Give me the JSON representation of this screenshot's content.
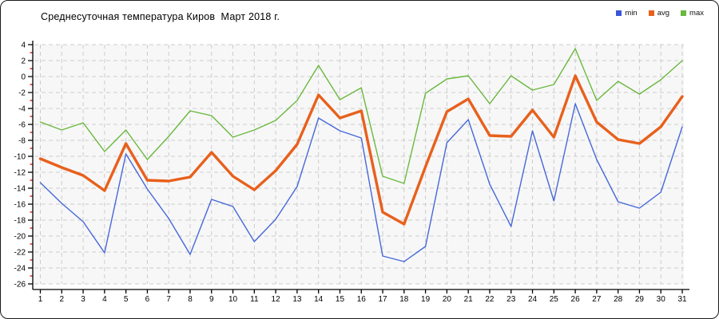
{
  "title": "Среднесуточная температура Киров  Март 2018 г.",
  "legend": [
    {
      "label": "min",
      "color": "#3a55d9"
    },
    {
      "label": "avg",
      "color": "#e8601c"
    },
    {
      "label": "max",
      "color": "#6ab83e"
    }
  ],
  "colors": {
    "plot_background": "#f7f7f7",
    "grid": "#cccccc",
    "axis": "#000000",
    "minor_tick": "#cc0000",
    "min_line": "#4668d9",
    "avg_line": "#e8601c",
    "max_line": "#6ab83e"
  },
  "chart_data": {
    "type": "line",
    "x_label_unit": "day of month",
    "x": [
      1,
      2,
      3,
      4,
      5,
      6,
      7,
      8,
      9,
      10,
      11,
      12,
      13,
      14,
      15,
      16,
      17,
      18,
      19,
      20,
      21,
      22,
      23,
      24,
      25,
      26,
      27,
      28,
      29,
      30,
      31
    ],
    "series": [
      {
        "name": "min",
        "color": "#4668d9",
        "width": 1.4,
        "values": [
          -13.3,
          -15.9,
          -18.2,
          -22.1,
          -9.7,
          -14.1,
          -17.8,
          -22.3,
          -15.4,
          -16.3,
          -20.7,
          -17.9,
          -13.8,
          -5.2,
          -6.8,
          -7.7,
          -22.5,
          -23.2,
          -21.3,
          -8.3,
          -5.4,
          -13.5,
          -18.8,
          -6.8,
          -15.6,
          -3.4,
          -10.4,
          -15.7,
          -16.5,
          -14.5,
          -6.3
        ]
      },
      {
        "name": "avg",
        "color": "#e8601c",
        "width": 3.4,
        "values": [
          -10.3,
          -11.4,
          -12.4,
          -14.3,
          -8.4,
          -13.0,
          -13.1,
          -12.6,
          -9.5,
          -12.5,
          -14.2,
          -11.8,
          -8.5,
          -2.3,
          -5.2,
          -4.3,
          -17.0,
          -18.5,
          -11.3,
          -4.4,
          -2.8,
          -7.4,
          -7.5,
          -4.2,
          -7.6,
          0.1,
          -5.7,
          -7.9,
          -8.4,
          -6.3,
          -2.5
        ]
      },
      {
        "name": "max",
        "color": "#6ab83e",
        "width": 1.4,
        "values": [
          -5.7,
          -6.7,
          -5.8,
          -9.4,
          -6.7,
          -10.4,
          -7.5,
          -4.3,
          -4.9,
          -7.6,
          -6.7,
          -5.5,
          -3.0,
          1.4,
          -2.9,
          -1.4,
          -12.5,
          -13.4,
          -2.1,
          -0.3,
          0.1,
          -3.4,
          0.1,
          -1.7,
          -1.0,
          3.5,
          -3.0,
          -0.6,
          -2.2,
          -0.4,
          2.0
        ]
      }
    ],
    "title": "Среднесуточная температура Киров  Март 2018 г.",
    "xlabel": "",
    "ylabel": "",
    "ylim": [
      -26,
      4
    ],
    "ytick_step": 2,
    "grid": true,
    "legend_position": "top-right"
  }
}
